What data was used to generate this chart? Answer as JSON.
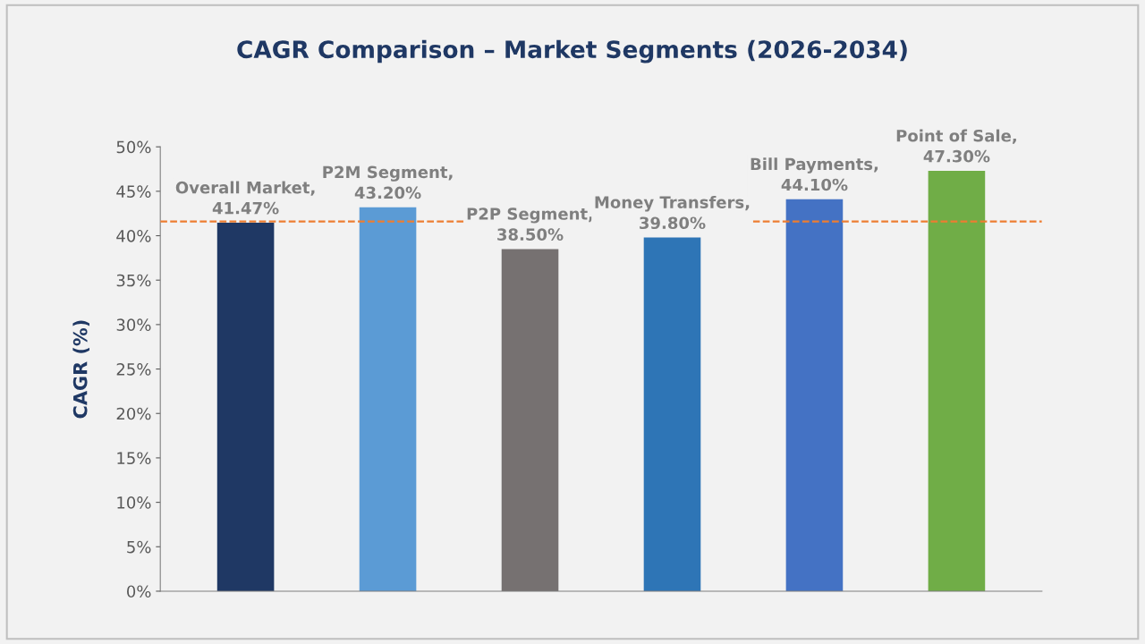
{
  "chart_data": {
    "type": "bar",
    "title": "CAGR Comparison – Market Segments (2026-2034)",
    "ylabel": "CAGR (%)",
    "categories": [
      null,
      null,
      null,
      null,
      null,
      null
    ],
    "values": [
      41.47,
      43.2,
      38.5,
      39.8,
      44.1,
      47.3
    ],
    "colors": [
      "#1f3864",
      "#5b9bd5",
      "#767171",
      "#2e75b6",
      "#4472c4",
      "#70ad47"
    ],
    "value_labels": [
      "Overall Market,\n41.47%",
      "P2M Segment,\n43.20%",
      "P2P Segment,\n38.50%",
      "Money Transfers,\n39.80%",
      "Bill Payments,\n44.10%",
      "Point of Sale,\n47.30%"
    ],
    "ylim": [
      0,
      50
    ],
    "yticks": [
      {
        "value": 0,
        "label": "0%"
      },
      {
        "value": 5,
        "label": "5%"
      },
      {
        "value": 10,
        "label": "10%"
      },
      {
        "value": 15,
        "label": "15%"
      },
      {
        "value": 20,
        "label": "20%"
      },
      {
        "value": 25,
        "label": "25%"
      },
      {
        "value": 30,
        "label": "30%"
      },
      {
        "value": 35,
        "label": "35%"
      },
      {
        "value": 40,
        "label": "40%"
      },
      {
        "value": 45,
        "label": "45%"
      },
      {
        "value": 50,
        "label": "50%"
      }
    ],
    "ref_lines": [
      {
        "axis": "y",
        "value": 41.6,
        "label": null,
        "color": "#ed7d31",
        "line_style": "dashed"
      }
    ],
    "grid": false,
    "legend": false
  }
}
